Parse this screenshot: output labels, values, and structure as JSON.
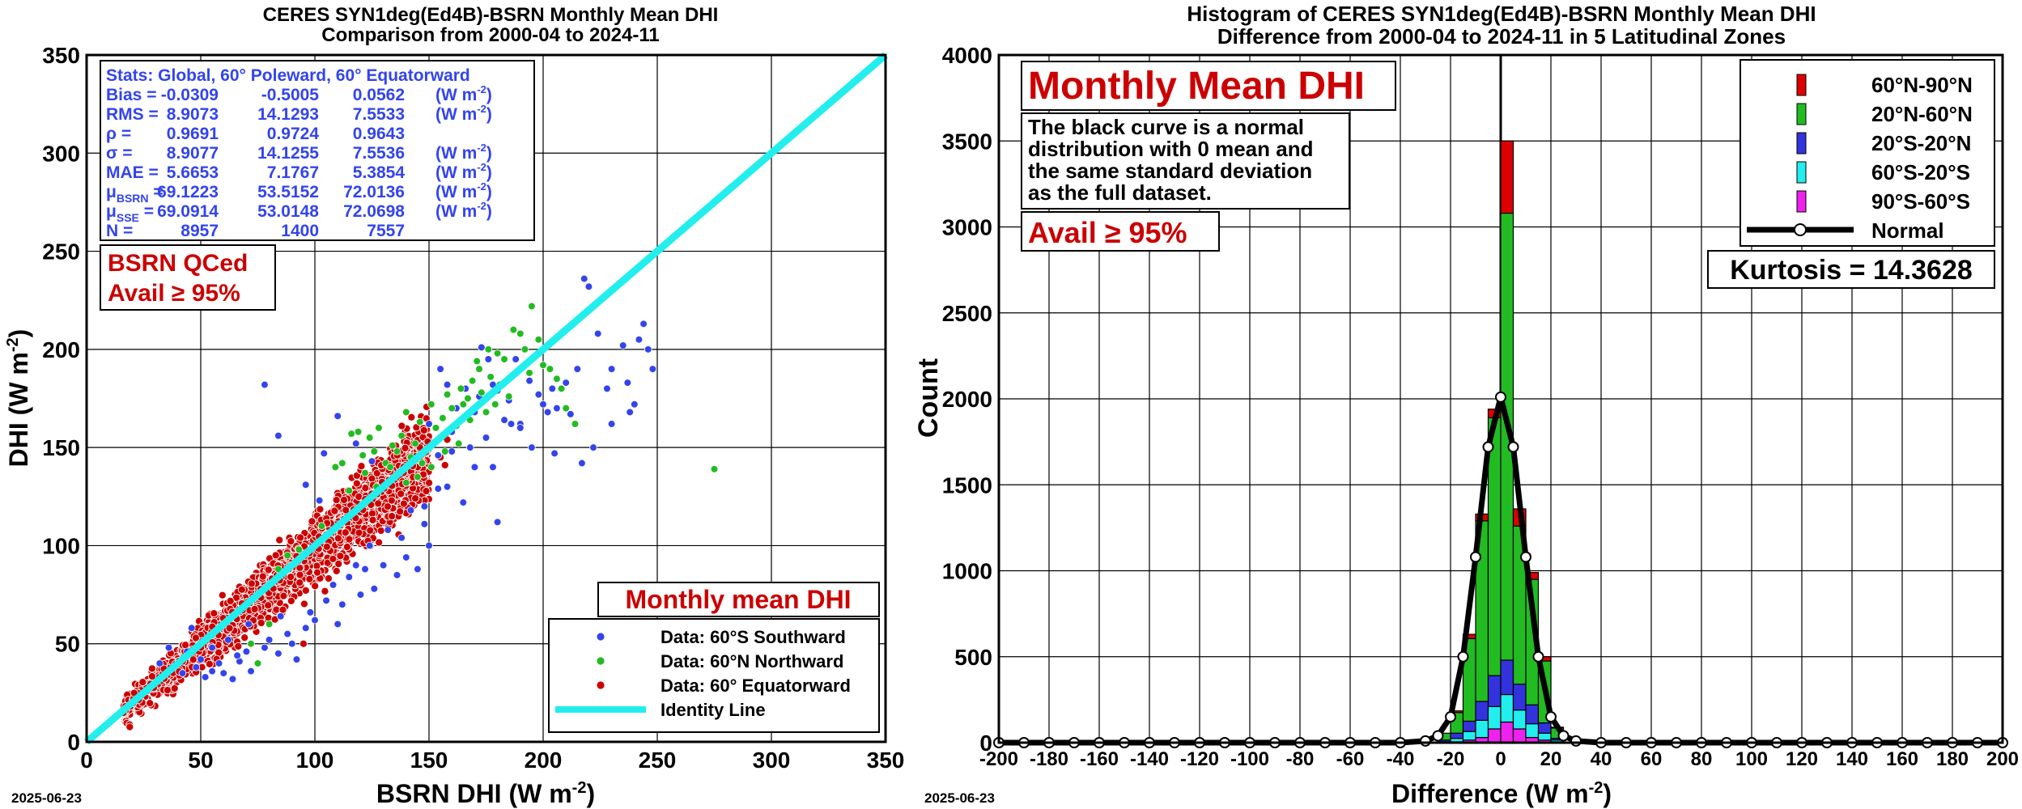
{
  "chart_data": [
    {
      "type": "scatter",
      "title": "CERES SYN1deg(Ed4B)-BSRN Monthly Mean DHI",
      "subtitle": "Comparison from 2000-04 to 2024-11",
      "xlabel": "BSRN DHI (W m",
      "ylabel": "DHI (W m",
      "unit_exponent": "-2",
      "xlim": [
        0,
        350
      ],
      "ylim": [
        0,
        350
      ],
      "xticks": [
        0,
        50,
        100,
        150,
        200,
        250,
        300,
        350
      ],
      "yticks": [
        0,
        50,
        100,
        150,
        200,
        250,
        300,
        350
      ],
      "grid": true,
      "colors": {
        "south": "#3344ee",
        "north": "#22bb22",
        "equator": "#cc0000",
        "identity": "#22eeee",
        "stats_text": "#3344ee",
        "label_red": "#cc0000"
      },
      "stats": {
        "header": "Stats: Global, 60° Poleward, 60° Equatorward",
        "rows": [
          {
            "label": "Bias =",
            "v1": "-0.0309",
            "v2": "-0.5005",
            "v3": "0.0562",
            "unit": true
          },
          {
            "label": "RMS =",
            "v1": "8.9073",
            "v2": "14.1293",
            "v3": "7.5533",
            "unit": true
          },
          {
            "label": "ρ =",
            "v1": "0.9691",
            "v2": "0.9724",
            "v3": "0.9643",
            "unit": false
          },
          {
            "label": "σ =",
            "v1": "8.9077",
            "v2": "14.1255",
            "v3": "7.5536",
            "unit": true
          },
          {
            "label": "MAE =",
            "v1": "5.6653",
            "v2": "7.1767",
            "v3": "5.3854",
            "unit": true
          },
          {
            "label": "μ",
            "sub": "BSRN",
            "eq": "=",
            "v1": "69.1223",
            "v2": "53.5152",
            "v3": "72.0136",
            "unit": true
          },
          {
            "label": "μ",
            "sub": "SSE",
            "eq": "=",
            "v1": "69.0914",
            "v2": "53.0148",
            "v3": "72.0698",
            "unit": true
          },
          {
            "label": "N =",
            "v1": "8957",
            "v2": "1400",
            "v3": "7557",
            "unit": false
          }
        ],
        "unit_text": "(W m",
        "unit_exp": "-2",
        "unit_close": ")"
      },
      "qc_label": "BSRN QCed",
      "avail_label": "Avail ≥ 95%",
      "monthly_label": "Monthly mean DHI",
      "legend": {
        "position": "bottom-right",
        "entries": [
          "Data: 60°S Southward",
          "Data: 60°N Northward",
          "Data: 60° Equatorward",
          "Identity Line"
        ]
      },
      "series": [
        {
          "name": "Data: 60°S Southward",
          "points": [
            [
              78,
              182
            ],
            [
              84,
              156
            ],
            [
              96,
              131
            ],
            [
              102,
              123
            ],
            [
              104,
              147
            ],
            [
              110,
              166
            ],
            [
              118,
              152
            ],
            [
              125,
              143
            ],
            [
              142,
              142
            ],
            [
              150,
              162
            ],
            [
              155,
              190
            ],
            [
              158,
              182
            ],
            [
              162,
              170
            ],
            [
              166,
              180
            ],
            [
              170,
              168
            ],
            [
              173,
              201
            ],
            [
              176,
              195
            ],
            [
              178,
              182
            ],
            [
              180,
              179
            ],
            [
              185,
              174
            ],
            [
              188,
              195
            ],
            [
              190,
              162
            ],
            [
              194,
              184
            ],
            [
              198,
              177
            ],
            [
              200,
              172
            ],
            [
              204,
              180
            ],
            [
              206,
              170
            ],
            [
              210,
              183
            ],
            [
              212,
              167
            ],
            [
              215,
              190
            ],
            [
              218,
              236
            ],
            [
              220,
              232
            ],
            [
              224,
              208
            ],
            [
              228,
              180
            ],
            [
              230,
              190
            ],
            [
              235,
              202
            ],
            [
              237,
              183
            ],
            [
              240,
              172
            ],
            [
              242,
              205
            ],
            [
              244,
              213
            ],
            [
              246,
              200
            ],
            [
              248,
              190
            ],
            [
              222,
              150
            ],
            [
              217,
              142
            ],
            [
              190,
              160
            ],
            [
              205,
              147
            ],
            [
              175,
              155
            ],
            [
              160,
              148
            ],
            [
              168,
              150
            ],
            [
              40,
              40
            ],
            [
              42,
              35
            ],
            [
              48,
              38
            ],
            [
              50,
              42
            ],
            [
              52,
              33
            ],
            [
              55,
              36
            ],
            [
              58,
              40
            ],
            [
              64,
              32
            ],
            [
              70,
              46
            ],
            [
              75,
              40
            ],
            [
              80,
              52
            ],
            [
              84,
              45
            ],
            [
              88,
              55
            ],
            [
              92,
              42
            ],
            [
              96,
              58
            ],
            [
              100,
              62
            ],
            [
              105,
              72
            ],
            [
              108,
              80
            ],
            [
              112,
              70
            ],
            [
              115,
              84
            ],
            [
              118,
              90
            ],
            [
              120,
              75
            ],
            [
              122,
              88
            ],
            [
              126,
              78
            ],
            [
              130,
              90
            ],
            [
              136,
              85
            ],
            [
              140,
              94
            ],
            [
              145,
              88
            ],
            [
              150,
              100
            ],
            [
              148,
              111
            ],
            [
              138,
              104
            ],
            [
              46,
              58
            ],
            [
              36,
              48
            ],
            [
              32,
              40
            ],
            [
              44,
              46
            ],
            [
              60,
              35
            ],
            [
              67,
              41
            ],
            [
              72,
              36
            ],
            [
              78,
              48
            ],
            [
              66,
              44
            ],
            [
              55,
              48
            ],
            [
              62,
              52
            ],
            [
              71,
              60
            ],
            [
              85,
              64
            ],
            [
              90,
              50
            ],
            [
              98,
              66
            ],
            [
              110,
              60
            ],
            [
              124,
              100
            ],
            [
              132,
              108
            ],
            [
              142,
              118
            ],
            [
              158,
              130
            ],
            [
              165,
              122
            ],
            [
              170,
              140
            ],
            [
              178,
              140
            ],
            [
              195,
              150
            ],
            [
              186,
              162
            ],
            [
              202,
              168
            ],
            [
              230,
              162
            ],
            [
              238,
              168
            ],
            [
              180,
              112
            ],
            [
              148,
              120
            ],
            [
              154,
              129
            ],
            [
              154,
              146
            ],
            [
              160,
              158
            ],
            [
              172,
              176
            ],
            [
              183,
              164
            ]
          ]
        },
        {
          "name": "Data: 60°N Northward",
          "points": [
            [
              93,
              98
            ],
            [
              103,
              110
            ],
            [
              109,
              140
            ],
            [
              116,
              157
            ],
            [
              119,
              158
            ],
            [
              121,
              146
            ],
            [
              124,
              155
            ],
            [
              126,
              148
            ],
            [
              128,
              160
            ],
            [
              131,
              142
            ],
            [
              134,
              151
            ],
            [
              136,
              148
            ],
            [
              138,
              156
            ],
            [
              140,
              168
            ],
            [
              142,
              145
            ],
            [
              144,
              152
            ],
            [
              146,
              163
            ],
            [
              147,
              142
            ],
            [
              149,
              149
            ],
            [
              151,
              172
            ],
            [
              153,
              160
            ],
            [
              156,
              165
            ],
            [
              158,
              177
            ],
            [
              160,
              170
            ],
            [
              162,
              161
            ],
            [
              164,
              180
            ],
            [
              165,
              172
            ],
            [
              167,
              175
            ],
            [
              169,
              184
            ],
            [
              171,
              194
            ],
            [
              173,
              178
            ],
            [
              175,
              168
            ],
            [
              177,
              186
            ],
            [
              179,
              172
            ],
            [
              181,
              182
            ],
            [
              183,
              195
            ],
            [
              185,
              176
            ],
            [
              187,
              210
            ],
            [
              190,
              208
            ],
            [
              192,
              200
            ],
            [
              194,
              188
            ],
            [
              195,
              222
            ],
            [
              198,
              205
            ],
            [
              200,
              192
            ],
            [
              203,
              190
            ],
            [
              206,
              185
            ],
            [
              208,
              180
            ],
            [
              210,
              170
            ],
            [
              214,
              162
            ],
            [
              180,
              198
            ],
            [
              176,
              200
            ],
            [
              172,
              190
            ],
            [
              168,
              164
            ],
            [
              163,
              152
            ],
            [
              157,
              148
            ],
            [
              151,
              140
            ],
            [
              145,
              135
            ],
            [
              140,
              132
            ],
            [
              133,
              140
            ],
            [
              127,
              130
            ],
            [
              122,
              137
            ],
            [
              115,
              128
            ],
            [
              112,
              142
            ],
            [
              275,
              139
            ],
            [
              75,
              40
            ],
            [
              80,
              60
            ],
            [
              84,
              88
            ],
            [
              72,
              50
            ],
            [
              88,
              95
            ]
          ]
        }
      ],
      "equator_cloud_description_only": true
    },
    {
      "type": "bar",
      "title": "Histogram of CERES SYN1deg(Ed4B)-BSRN Monthly Mean DHI",
      "subtitle": "Difference from 2000-04 to 2024-11 in 5 Latitudinal Zones",
      "xlabel": "Difference (W m",
      "ylabel": "Count",
      "unit_exponent": "-2",
      "xlim": [
        -200,
        200
      ],
      "ylim": [
        0,
        4000
      ],
      "xticks": [
        -200,
        -180,
        -160,
        -140,
        -120,
        -100,
        -80,
        -60,
        -40,
        -20,
        0,
        20,
        40,
        60,
        80,
        100,
        120,
        140,
        160,
        180,
        200
      ],
      "yticks": [
        0,
        500,
        1000,
        1500,
        2000,
        2500,
        3000,
        3500,
        4000
      ],
      "grid": true,
      "stacked": true,
      "bin_width": 5,
      "big_label": "Monthly Mean DHI",
      "description": [
        "The black curve is a normal",
        "distribution with 0 mean and",
        "the same standard deviation",
        "as the full dataset."
      ],
      "avail_label": "Avail ≥ 95%",
      "kurtosis_label": "Kurtosis = 14.3628",
      "legend": {
        "position": "top-right",
        "entries": [
          {
            "name": "60°N-90°N",
            "color": "#dd0000"
          },
          {
            "name": "20°N-60°N",
            "color": "#22bb22"
          },
          {
            "name": "20°S-20°N",
            "color": "#3333dd"
          },
          {
            "name": "60°S-20°S",
            "color": "#22eeee"
          },
          {
            "name": "90°S-60°S",
            "color": "#ee22ee"
          },
          {
            "name": "Normal",
            "color": "#000000"
          }
        ]
      },
      "bins": [
        -25,
        -20,
        -15,
        -10,
        -5,
        0,
        5,
        10,
        15,
        20
      ],
      "series": [
        {
          "name": "90°S-60°S",
          "values": [
            0,
            5,
            15,
            30,
            80,
            120,
            80,
            30,
            15,
            5
          ]
        },
        {
          "name": "60°S-20°S",
          "values": [
            5,
            20,
            50,
            100,
            130,
            160,
            110,
            80,
            40,
            10
          ]
        },
        {
          "name": "20°S-20°N",
          "values": [
            10,
            30,
            60,
            110,
            180,
            200,
            150,
            110,
            60,
            10
          ]
        },
        {
          "name": "20°N-60°N",
          "values": [
            40,
            120,
            480,
            1050,
            1500,
            2600,
            920,
            730,
            360,
            60
          ]
        },
        {
          "name": "60°N-90°N",
          "values": [
            0,
            10,
            25,
            40,
            50,
            420,
            100,
            40,
            25,
            5
          ]
        }
      ],
      "normal_curve": {
        "x": [
          -200,
          -190,
          -180,
          -170,
          -160,
          -150,
          -140,
          -130,
          -120,
          -110,
          -100,
          -90,
          -80,
          -70,
          -60,
          -50,
          -40,
          -30,
          -25,
          -20,
          -15,
          -10,
          -5,
          0,
          5,
          10,
          15,
          20,
          25,
          30,
          40,
          50,
          60,
          70,
          80,
          90,
          100,
          110,
          120,
          130,
          140,
          150,
          160,
          170,
          180,
          190,
          200
        ],
        "y": [
          0,
          0,
          0,
          0,
          0,
          0,
          0,
          0,
          0,
          0,
          0,
          0,
          0,
          0,
          0,
          0,
          0,
          10,
          40,
          150,
          500,
          1080,
          1720,
          2010,
          1720,
          1080,
          500,
          150,
          40,
          10,
          0,
          0,
          0,
          0,
          0,
          0,
          0,
          0,
          0,
          0,
          0,
          0,
          0,
          0,
          0,
          0,
          0
        ]
      }
    }
  ],
  "footer": {
    "date_left": "2025-06-23",
    "date_right": "2025-06-23"
  }
}
